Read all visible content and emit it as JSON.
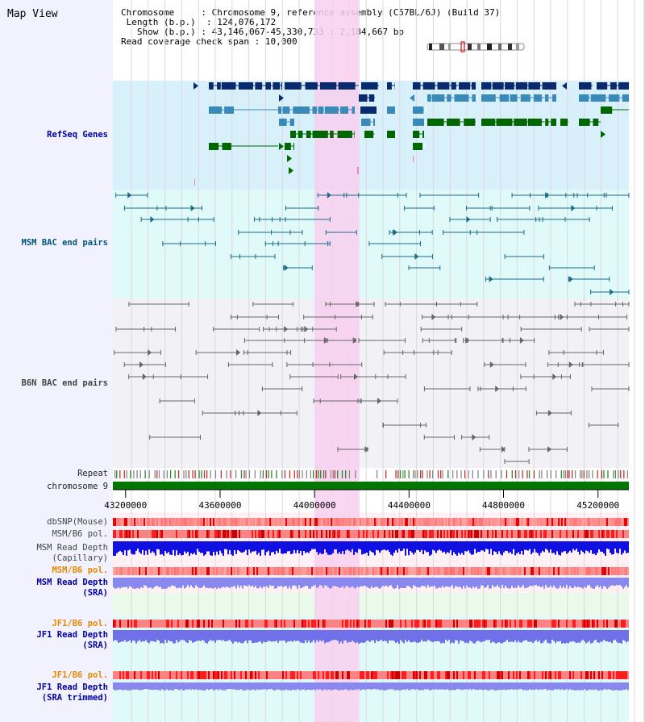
{
  "map_title": "Map View",
  "header": {
    "chromosome_label": "Chromosome",
    "chromosome_value": "Chromosome 9, reference assembly (C57BL/6J) (Build 37)",
    "length_label": "Length (b.p.)",
    "length_value": "124,076,172",
    "show_label": "Show (b.p.)",
    "show_value": "43,146,067-45,330,733 : 2,184,667 bp",
    "coverage_label": "Read coverage check span",
    "coverage_value": "10,000"
  },
  "tracks": {
    "refseq": "RefSeq Genes",
    "msm_bac": "MSM BAC end pairs",
    "b6n_bac": "B6N BAC end pairs",
    "repeat": "Repeat",
    "chromosome": "chromosome 9",
    "dbsnp": "dbSNP(Mouse)",
    "msm_b6_pol_1": "MSM/B6 pol.",
    "msm_depth_cap_1": "MSM Read Depth",
    "msm_depth_cap_2": "(Capillary)",
    "msm_b6_pol_2": "MSM/B6 pol.",
    "msm_depth_sra_1": "MSM Read Depth",
    "msm_depth_sra_2": "(SRA)",
    "jf1_b6_pol_1": "JF1/B6 pol.",
    "jf1_depth_sra_1": "JF1 Read Depth",
    "jf1_depth_sra_2": "(SRA)",
    "jf1_b6_pol_2": "JF1/B6 pol.",
    "jf1_depth_trim_1": "JF1 Read Depth",
    "jf1_depth_trim_2": "(SRA trimmed)"
  },
  "axis": {
    "ticks": [
      "43200000",
      "43600000",
      "44000000",
      "44400000",
      "44800000",
      "45200000"
    ],
    "tick_values": [
      43200000,
      43600000,
      44000000,
      44400000,
      44800000,
      45200000
    ],
    "start": 43146067,
    "end": 45330733
  },
  "highlight": {
    "start": 44000000,
    "end": 44190000,
    "color": "#f8d0f0"
  },
  "colors": {
    "refseq_bg": "#d8f0fa",
    "msm_bg": "#e0fafa",
    "b6n_bg": "#f2f2f6",
    "gene_dark": "#0a2a6e",
    "gene_mid": "#3a8ab8",
    "gene_green": "#006600",
    "msm_line": "#1a6a8a",
    "b6n_line": "#666666",
    "chrom_green": "#007700",
    "snp_red": "#ff5050",
    "depth_blue": "#1010e0",
    "depth_lavender": "#8888ee"
  }
}
